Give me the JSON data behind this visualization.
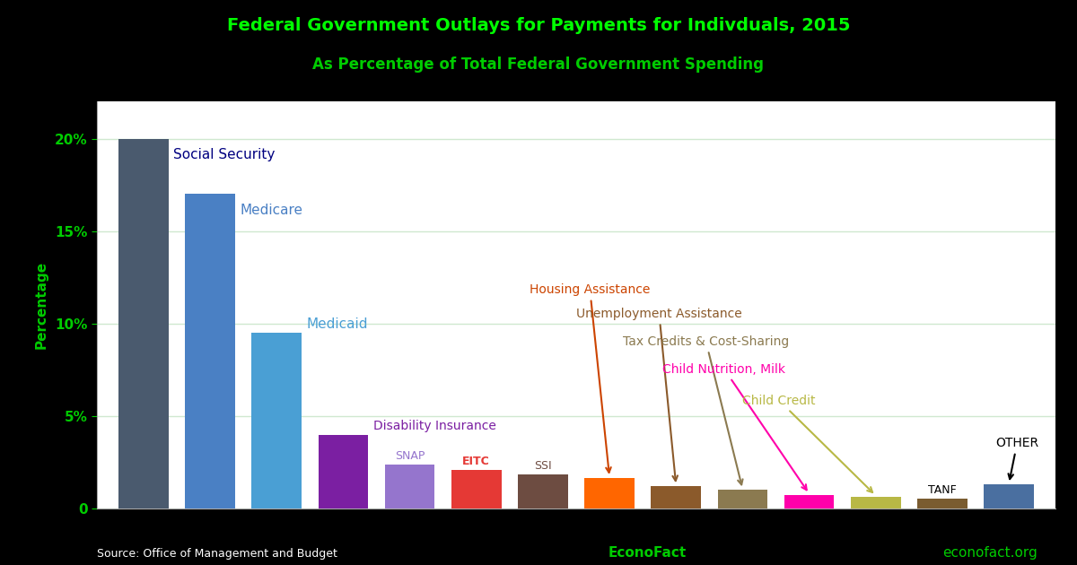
{
  "title_line1": "Federal Government Outlays for Payments for Indivduals, 2015",
  "title_line2": "As Percentage of Total Federal Government Spending",
  "title_color": "#00ff00",
  "subtitle_color": "#00cc00",
  "background_color": "#000000",
  "plot_bg_color": "#ffffff",
  "ylabel": "Percentage",
  "ylabel_color": "#00cc00",
  "source_text": "Source: Office of Management and Budget",
  "econofact_text": "EconoFact",
  "econofact_url": "econofact.org",
  "categories": [
    "Social Security",
    "Medicare",
    "Medicaid",
    "Disability Insurance",
    "SNAP",
    "EITC",
    "SSI",
    "Housing Assistance",
    "Unemployment Assistance",
    "Tax Credits & Cost-Sharing",
    "Child Nutrition, Milk",
    "Child Credit",
    "TANF",
    "OTHER"
  ],
  "values": [
    20.0,
    17.0,
    9.5,
    4.0,
    2.4,
    2.1,
    1.85,
    1.65,
    1.2,
    1.0,
    0.75,
    0.65,
    0.55,
    1.3
  ],
  "bar_colors": [
    "#4a5a6e",
    "#4a80c4",
    "#4a9fd4",
    "#7b1fa2",
    "#9575cd",
    "#e53935",
    "#6d4c41",
    "#ff6600",
    "#8b5a2b",
    "#8b7a50",
    "#ff00aa",
    "#b8b845",
    "#7a5c30",
    "#4a6fa0"
  ],
  "label_colors": [
    "#000080",
    "#4a80c4",
    "#4a9fd4",
    "#7b1fa2",
    "#9575cd",
    "#e53935",
    "#6d4c41",
    "#cc4400",
    "#8b5a2b",
    "#8b7a50",
    "#ff00aa",
    "#b8b845",
    "#000000",
    "#000000"
  ],
  "ytick_color": "#00cc00",
  "grid_color": "#d0e8d0",
  "ylim": [
    0,
    22
  ],
  "yticks": [
    0,
    5,
    10,
    15,
    20
  ],
  "ytick_labels": [
    "0",
    "5%",
    "10%",
    "15%",
    "20%"
  ]
}
